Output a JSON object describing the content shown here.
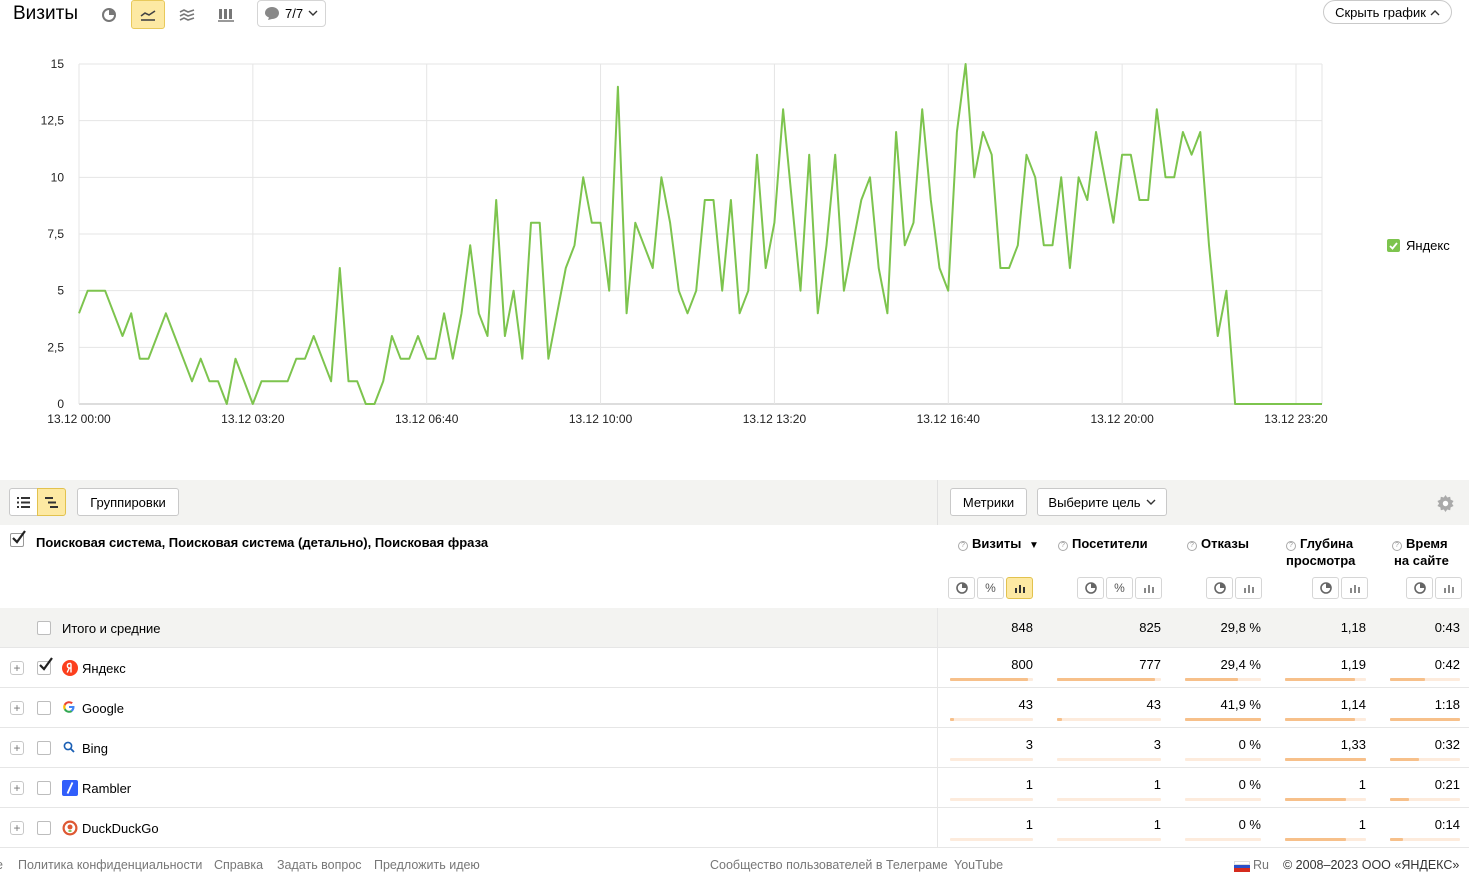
{
  "toolbar": {
    "title": "Визиты",
    "comments_count": "7/7",
    "hide_chart_label": "Скрыть график"
  },
  "chart_data": {
    "type": "line",
    "x_tick_labels": [
      "13.12 00:00",
      "13.12 03:20",
      "13.12 06:40",
      "13.12 10:00",
      "13.12 13:20",
      "13.12 16:40",
      "13.12 20:00",
      "13.12 23:20"
    ],
    "y_tick_labels": [
      "0",
      "2,5",
      "5",
      "7,5",
      "10",
      "12,5",
      "15"
    ],
    "ylim": [
      0,
      15
    ],
    "grid": true,
    "legend_position": "right",
    "series": [
      {
        "name": "Яндекс",
        "color": "#7dc44e",
        "values": [
          4,
          5,
          5,
          5,
          4,
          3,
          4,
          2,
          2,
          3,
          4,
          3,
          2,
          1,
          2,
          1,
          1,
          0,
          2,
          1,
          0,
          1,
          1,
          1,
          1,
          2,
          2,
          3,
          2,
          1,
          6,
          1,
          1,
          0,
          0,
          1,
          3,
          2,
          2,
          3,
          2,
          2,
          4,
          2,
          4,
          7,
          4,
          3,
          9,
          3,
          5,
          2,
          8,
          8,
          2,
          4,
          6,
          7,
          10,
          8,
          8,
          5,
          14,
          4,
          8,
          7,
          6,
          10,
          8,
          5,
          4,
          5,
          9,
          9,
          5,
          9,
          4,
          5,
          11,
          6,
          8,
          13,
          9,
          5,
          11,
          4,
          7,
          11,
          5,
          7,
          9,
          10,
          6,
          4,
          12,
          7,
          8,
          13,
          9,
          6,
          5,
          12,
          15,
          10,
          12,
          11,
          6,
          6,
          7,
          11,
          10,
          7,
          7,
          10,
          6,
          10,
          9,
          12,
          10,
          8,
          11,
          11,
          9,
          9,
          13,
          10,
          10,
          12,
          11,
          12,
          7,
          3,
          5,
          0,
          0,
          0,
          0,
          0,
          0,
          0,
          0,
          0,
          0,
          0
        ]
      }
    ]
  },
  "table": {
    "toolbar": {
      "groupings_label": "Группировки",
      "metrics_label": "Метрики",
      "goal_label": "Выберите цель"
    },
    "dimension_header": "Поисковая система, Поисковая система (детально), Поисковая фраза",
    "columns": [
      {
        "line1": "Визиты",
        "line2": "",
        "sort": "▼"
      },
      {
        "line1": "Посетители",
        "line2": ""
      },
      {
        "line1": "Отказы",
        "line2": ""
      },
      {
        "line1": "Глубина",
        "line2": "просмотра"
      },
      {
        "line1": "Время",
        "line2": "на сайте"
      }
    ],
    "total": {
      "label": "Итого и средние",
      "values": [
        "848",
        "825",
        "29,8 %",
        "1,18",
        "0:43"
      ]
    },
    "rows": [
      {
        "label": "Яндекс",
        "checked": true,
        "icon": "yandex-icon",
        "values": [
          "800",
          "777",
          "29,4 %",
          "1,19",
          "0:42"
        ],
        "bars": [
          0.94,
          0.94,
          0.7,
          0.86,
          0.5
        ]
      },
      {
        "label": "Google",
        "checked": false,
        "icon": "google-icon",
        "values": [
          "43",
          "43",
          "41,9 %",
          "1,14",
          "1:18"
        ],
        "bars": [
          0.05,
          0.05,
          1.0,
          0.86,
          1.0
        ]
      },
      {
        "label": "Bing",
        "checked": false,
        "icon": "bing-icon",
        "values": [
          "3",
          "3",
          "0 %",
          "1,33",
          "0:32"
        ],
        "bars": [
          0.0,
          0.0,
          0.0,
          1.0,
          0.41
        ]
      },
      {
        "label": "Rambler",
        "checked": false,
        "icon": "rambler-icon",
        "values": [
          "1",
          "1",
          "0 %",
          "1",
          "0:21"
        ],
        "bars": [
          0.0,
          0.0,
          0.0,
          0.75,
          0.27
        ]
      },
      {
        "label": "DuckDuckGo",
        "checked": false,
        "icon": "duckduckgo-icon",
        "values": [
          "1",
          "1",
          "0 %",
          "1",
          "0:14"
        ],
        "bars": [
          0.0,
          0.0,
          0.0,
          0.75,
          0.18
        ]
      }
    ]
  },
  "footer": {
    "links": [
      "Политика конфиденциальности",
      "Справка",
      "Задать вопрос",
      "Предложить идею"
    ],
    "community": "Сообщество пользователей в Телеграме",
    "youtube": "YouTube",
    "lang": "Ru",
    "copyright": "© 2008–2023 ООО «ЯНДЕКС»"
  }
}
